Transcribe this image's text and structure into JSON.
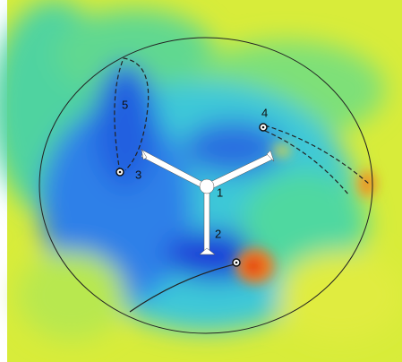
{
  "labels": [
    "1",
    "2",
    "3",
    "4",
    "5"
  ]
}
